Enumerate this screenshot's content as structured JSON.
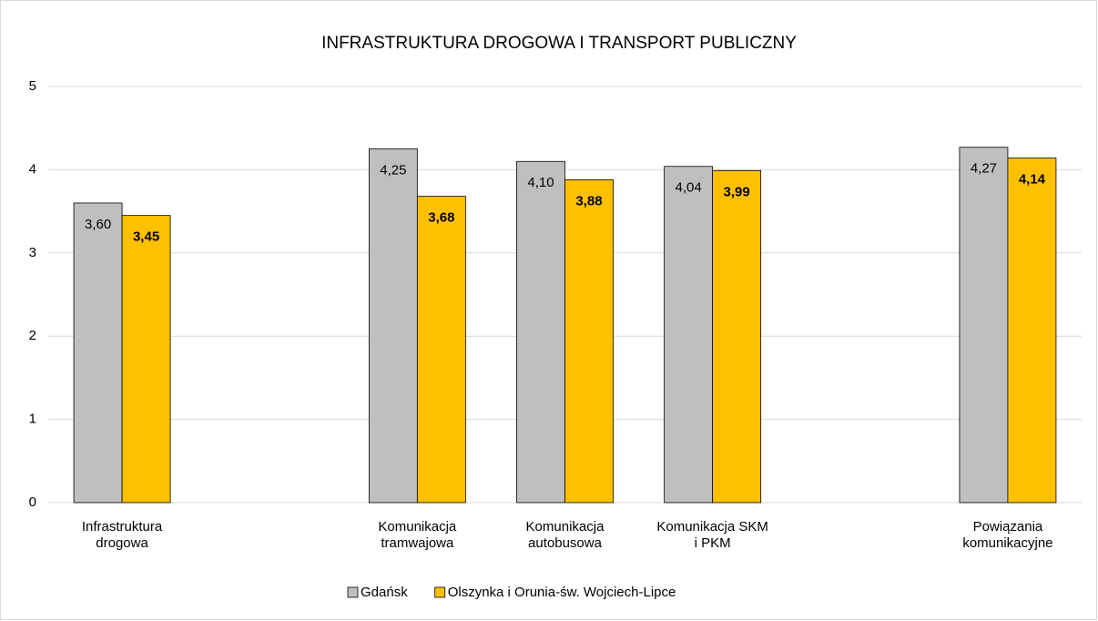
{
  "chart_data": {
    "type": "bar",
    "title": "INFRASTRUKTURA DROGOWA I TRANSPORT PUBLICZNY",
    "categories": [
      "Infrastruktura drogowa",
      null,
      "Komunikacja tramwajowa",
      "Komunikacja autobusowa",
      "Komunikacja SKM i PKM",
      null,
      "Powiązania komunikacyjne"
    ],
    "series": [
      {
        "name": "Gdańsk",
        "color": "#bfbfbf",
        "values": [
          3.6,
          null,
          4.25,
          4.1,
          4.04,
          null,
          4.27
        ],
        "value_labels": [
          "3,60",
          null,
          "4,25",
          "4,10",
          "4,04",
          null,
          "4,27"
        ]
      },
      {
        "name": "Olszynka i Orunia-św. Wojciech-Lipce",
        "color": "#ffc000",
        "values": [
          3.45,
          null,
          3.68,
          3.88,
          3.99,
          null,
          4.14
        ],
        "value_labels": [
          "3,45",
          null,
          "3,68",
          "3,88",
          "3,99",
          null,
          "4,14"
        ]
      }
    ],
    "ylim": [
      0,
      5
    ],
    "yticks": [
      0,
      1,
      2,
      3,
      4,
      5
    ],
    "grid": true,
    "legend": "bottom"
  }
}
